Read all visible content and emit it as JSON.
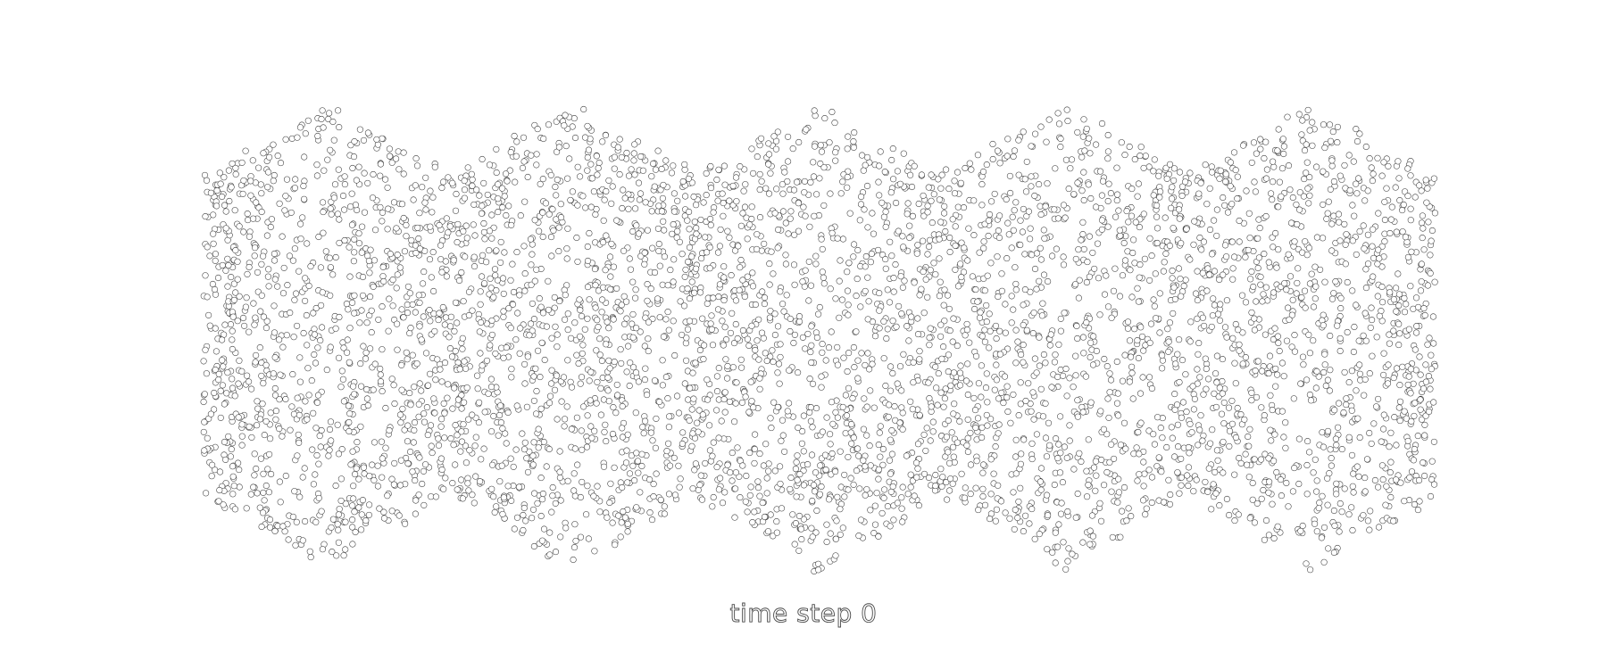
{
  "caption": "time step 0",
  "colors": {
    "background": "#ffffff",
    "particle_stroke": "#3a3a3a",
    "particle_fill": "#ffffff",
    "caption_stroke": "#4a4a4a"
  },
  "simulation": {
    "time_step": 0,
    "band_lobes": 5
  }
}
